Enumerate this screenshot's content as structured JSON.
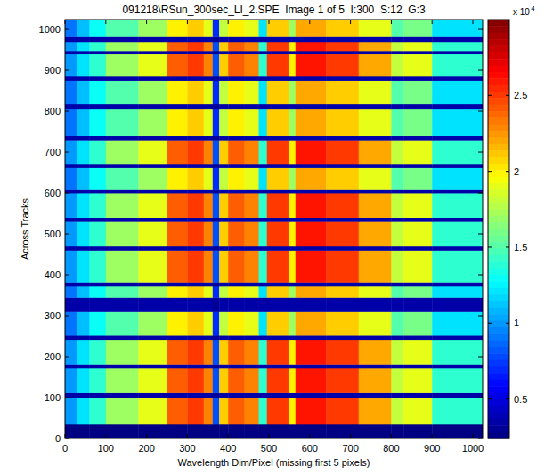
{
  "chart_data": {
    "type": "heatmap",
    "title": "091218\\RSun_300sec_LI_2.SPE  Image 1 of 5  I:300  S:12  G:3",
    "x_label": "Wavelength Dim/Pixel (missing first 5 pixels)",
    "y_label": "Across Tracks",
    "xlim": [
      0,
      1024
    ],
    "ylim": [
      0,
      1024
    ],
    "xticks": [
      0,
      100,
      200,
      300,
      400,
      500,
      600,
      700,
      800,
      900,
      1000
    ],
    "yticks": [
      0,
      100,
      200,
      300,
      400,
      500,
      600,
      700,
      800,
      900,
      1000
    ],
    "x_edges": [
      0,
      30,
      60,
      100,
      180,
      250,
      300,
      340,
      362,
      378,
      400,
      440,
      475,
      495,
      550,
      565,
      640,
      720,
      800,
      830,
      900,
      1024
    ],
    "y_edges": [
      0,
      35,
      100,
      112,
      172,
      182,
      242,
      252,
      310,
      345,
      372,
      382,
      460,
      470,
      530,
      540,
      600,
      608,
      662,
      672,
      730,
      740,
      805,
      818,
      875,
      885,
      940,
      948,
      970,
      982,
      1024
    ],
    "cells": [
      [
        0.25,
        0.25,
        0.25,
        0.25,
        0.25,
        0.25,
        0.25,
        0.25,
        0.25,
        0.25,
        0.25,
        0.25,
        0.25,
        0.25,
        0.25,
        0.25,
        0.25,
        0.25,
        0.25,
        0.25,
        0.25
      ],
      [
        1.0,
        1.2,
        1.4,
        1.7,
        1.9,
        2.4,
        2.5,
        2.3,
        0.8,
        2.1,
        2.4,
        2.3,
        1.4,
        2.5,
        2.0,
        2.6,
        2.5,
        2.2,
        1.8,
        1.9,
        1.4
      ],
      [
        0.35,
        0.35,
        0.35,
        0.35,
        0.35,
        0.35,
        0.35,
        0.35,
        0.3,
        0.35,
        0.35,
        0.35,
        0.35,
        0.35,
        0.35,
        0.35,
        0.35,
        0.35,
        0.35,
        0.35,
        0.35
      ],
      [
        1.0,
        1.2,
        1.4,
        1.7,
        1.9,
        2.4,
        2.5,
        2.3,
        0.8,
        2.1,
        2.4,
        2.3,
        1.4,
        2.5,
        2.0,
        2.6,
        2.5,
        2.2,
        1.8,
        1.9,
        1.4
      ],
      [
        0.35,
        0.35,
        0.35,
        0.35,
        0.35,
        0.35,
        0.35,
        0.35,
        0.3,
        0.35,
        0.35,
        0.35,
        0.35,
        0.35,
        0.35,
        0.35,
        0.35,
        0.35,
        0.35,
        0.35,
        0.35
      ],
      [
        1.0,
        1.2,
        1.4,
        1.7,
        1.9,
        2.4,
        2.5,
        2.3,
        0.8,
        2.1,
        2.4,
        2.3,
        1.4,
        2.5,
        2.0,
        2.6,
        2.5,
        2.2,
        1.8,
        1.9,
        1.4
      ],
      [
        0.35,
        0.35,
        0.35,
        0.35,
        0.35,
        0.35,
        0.35,
        0.35,
        0.3,
        0.35,
        0.35,
        0.35,
        0.35,
        0.35,
        0.35,
        0.35,
        0.35,
        0.35,
        0.35,
        0.35,
        0.35
      ],
      [
        0.9,
        1.1,
        1.3,
        1.5,
        1.7,
        2.0,
        2.1,
        1.9,
        0.7,
        1.8,
        2.0,
        1.9,
        1.2,
        2.1,
        1.7,
        2.2,
        2.1,
        1.9,
        1.5,
        1.6,
        1.2
      ],
      [
        0.35,
        0.35,
        0.35,
        0.35,
        0.35,
        0.35,
        0.35,
        0.35,
        0.3,
        0.35,
        0.35,
        0.35,
        0.35,
        0.35,
        0.35,
        0.35,
        0.35,
        0.35,
        0.35,
        0.35,
        0.35
      ],
      [
        0.9,
        1.1,
        1.3,
        1.5,
        1.7,
        2.0,
        2.1,
        1.9,
        0.7,
        1.8,
        2.0,
        1.9,
        1.2,
        2.1,
        1.7,
        2.2,
        2.1,
        1.9,
        1.5,
        1.6,
        1.2
      ],
      [
        0.35,
        0.35,
        0.35,
        0.35,
        0.35,
        0.35,
        0.35,
        0.35,
        0.3,
        0.35,
        0.35,
        0.35,
        0.35,
        0.35,
        0.35,
        0.35,
        0.35,
        0.35,
        0.35,
        0.35,
        0.35
      ],
      [
        1.0,
        1.2,
        1.4,
        1.7,
        1.9,
        2.4,
        2.5,
        2.3,
        0.8,
        2.1,
        2.4,
        2.3,
        1.4,
        2.5,
        2.0,
        2.6,
        2.5,
        2.2,
        1.8,
        1.9,
        1.4
      ],
      [
        0.35,
        0.35,
        0.35,
        0.35,
        0.35,
        0.35,
        0.35,
        0.35,
        0.3,
        0.35,
        0.35,
        0.35,
        0.35,
        0.35,
        0.35,
        0.35,
        0.35,
        0.35,
        0.35,
        0.35,
        0.35
      ],
      [
        1.0,
        1.2,
        1.4,
        1.7,
        1.9,
        2.4,
        2.5,
        2.3,
        0.8,
        2.1,
        2.4,
        2.3,
        1.4,
        2.5,
        2.0,
        2.6,
        2.5,
        2.2,
        1.8,
        1.9,
        1.4
      ],
      [
        0.35,
        0.35,
        0.35,
        0.35,
        0.35,
        0.35,
        0.35,
        0.35,
        0.3,
        0.35,
        0.35,
        0.35,
        0.35,
        0.35,
        0.35,
        0.35,
        0.35,
        0.35,
        0.35,
        0.35,
        0.35
      ],
      [
        1.0,
        1.2,
        1.4,
        1.7,
        1.9,
        2.4,
        2.5,
        2.3,
        0.8,
        2.1,
        2.4,
        2.3,
        1.4,
        2.5,
        2.0,
        2.6,
        2.5,
        2.2,
        1.8,
        1.9,
        1.4
      ],
      [
        0.35,
        0.35,
        0.35,
        0.35,
        0.35,
        0.35,
        0.35,
        0.35,
        0.3,
        0.35,
        0.35,
        0.35,
        0.35,
        0.35,
        0.35,
        0.35,
        0.35,
        0.35,
        0.35,
        0.35,
        0.35
      ],
      [
        0.9,
        1.1,
        1.3,
        1.5,
        1.7,
        2.0,
        2.1,
        1.9,
        0.7,
        1.8,
        2.0,
        1.9,
        1.2,
        2.1,
        1.7,
        2.2,
        2.1,
        1.9,
        1.5,
        1.6,
        1.2
      ],
      [
        0.35,
        0.35,
        0.35,
        0.35,
        0.35,
        0.35,
        0.35,
        0.35,
        0.3,
        0.35,
        0.35,
        0.35,
        0.35,
        0.35,
        0.35,
        0.35,
        0.35,
        0.35,
        0.35,
        0.35,
        0.35
      ],
      [
        1.0,
        1.2,
        1.4,
        1.7,
        1.9,
        2.4,
        2.5,
        2.3,
        0.8,
        2.1,
        2.4,
        2.3,
        1.4,
        2.5,
        2.0,
        2.6,
        2.5,
        2.2,
        1.8,
        1.9,
        1.4
      ],
      [
        0.35,
        0.35,
        0.35,
        0.35,
        0.35,
        0.35,
        0.35,
        0.35,
        0.3,
        0.35,
        0.35,
        0.35,
        0.35,
        0.35,
        0.35,
        0.35,
        0.35,
        0.35,
        0.35,
        0.35,
        0.35
      ],
      [
        0.9,
        1.1,
        1.3,
        1.5,
        1.7,
        2.0,
        2.1,
        1.9,
        0.7,
        1.8,
        2.0,
        1.9,
        1.2,
        2.1,
        1.7,
        2.2,
        2.1,
        1.9,
        1.5,
        1.6,
        1.2
      ],
      [
        0.35,
        0.35,
        0.35,
        0.35,
        0.35,
        0.35,
        0.35,
        0.35,
        0.3,
        0.35,
        0.35,
        0.35,
        0.35,
        0.35,
        0.35,
        0.35,
        0.35,
        0.35,
        0.35,
        0.35,
        0.35
      ],
      [
        0.9,
        1.1,
        1.3,
        1.5,
        1.7,
        2.0,
        2.1,
        1.9,
        0.7,
        1.8,
        2.0,
        1.9,
        1.2,
        2.1,
        1.7,
        2.2,
        2.1,
        1.9,
        1.5,
        1.6,
        1.2
      ],
      [
        0.35,
        0.35,
        0.35,
        0.35,
        0.35,
        0.35,
        0.35,
        0.35,
        0.3,
        0.35,
        0.35,
        0.35,
        0.35,
        0.35,
        0.35,
        0.35,
        0.35,
        0.35,
        0.35,
        0.35,
        0.35
      ],
      [
        1.0,
        1.2,
        1.4,
        1.7,
        1.9,
        2.4,
        2.5,
        2.3,
        0.8,
        2.1,
        2.4,
        2.3,
        1.4,
        2.5,
        2.0,
        2.6,
        2.5,
        2.2,
        1.8,
        1.9,
        1.4
      ],
      [
        0.35,
        0.35,
        0.35,
        0.35,
        0.35,
        0.35,
        0.35,
        0.35,
        0.3,
        0.35,
        0.35,
        0.35,
        0.35,
        0.35,
        0.35,
        0.35,
        0.35,
        0.35,
        0.35,
        0.35,
        0.35
      ],
      [
        1.0,
        1.2,
        1.4,
        1.7,
        1.9,
        2.4,
        2.5,
        2.3,
        0.8,
        2.1,
        2.4,
        2.3,
        1.4,
        2.5,
        2.0,
        2.6,
        2.5,
        2.2,
        1.8,
        1.9,
        1.4
      ],
      [
        0.35,
        0.35,
        0.35,
        0.35,
        0.35,
        0.35,
        0.35,
        0.35,
        0.3,
        0.35,
        0.35,
        0.35,
        0.35,
        0.35,
        0.35,
        0.35,
        0.35,
        0.35,
        0.35,
        0.35,
        0.35
      ],
      [
        0.9,
        1.1,
        1.3,
        1.5,
        1.7,
        2.0,
        2.1,
        1.9,
        0.7,
        1.8,
        2.0,
        1.9,
        1.2,
        2.1,
        1.7,
        2.2,
        2.1,
        1.9,
        1.5,
        1.6,
        1.2
      ]
    ],
    "color_range": [
      0.24,
      3.0
    ],
    "color_ticks": [
      0.5,
      1,
      1.5,
      2,
      2.5
    ],
    "color_label": "x 10",
    "color_exponent": "4"
  }
}
